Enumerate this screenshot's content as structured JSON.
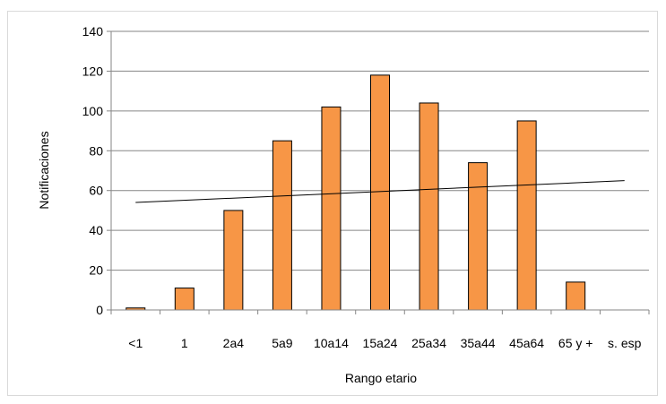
{
  "chart_data": {
    "type": "bar",
    "xlabel": "Rango etario",
    "ylabel": "Notificaciones",
    "categories": [
      "<1",
      "1",
      "2a4",
      "5a9",
      "10a14",
      "15a24",
      "25a34",
      "35a44",
      "45a64",
      "65 y +",
      "s. esp"
    ],
    "values": [
      1,
      11,
      50,
      85,
      102,
      118,
      104,
      74,
      95,
      14,
      0
    ],
    "ylim": [
      0,
      140
    ],
    "yticks": [
      0,
      20,
      40,
      60,
      80,
      100,
      120,
      140
    ],
    "grid": true,
    "legend": "none",
    "trendline": {
      "type": "linear",
      "start": 54,
      "end": 65
    },
    "colors": {
      "bar_fill": "#f79646",
      "bar_stroke": "#000000",
      "grid": "#868686",
      "trendline": "#000000"
    }
  }
}
